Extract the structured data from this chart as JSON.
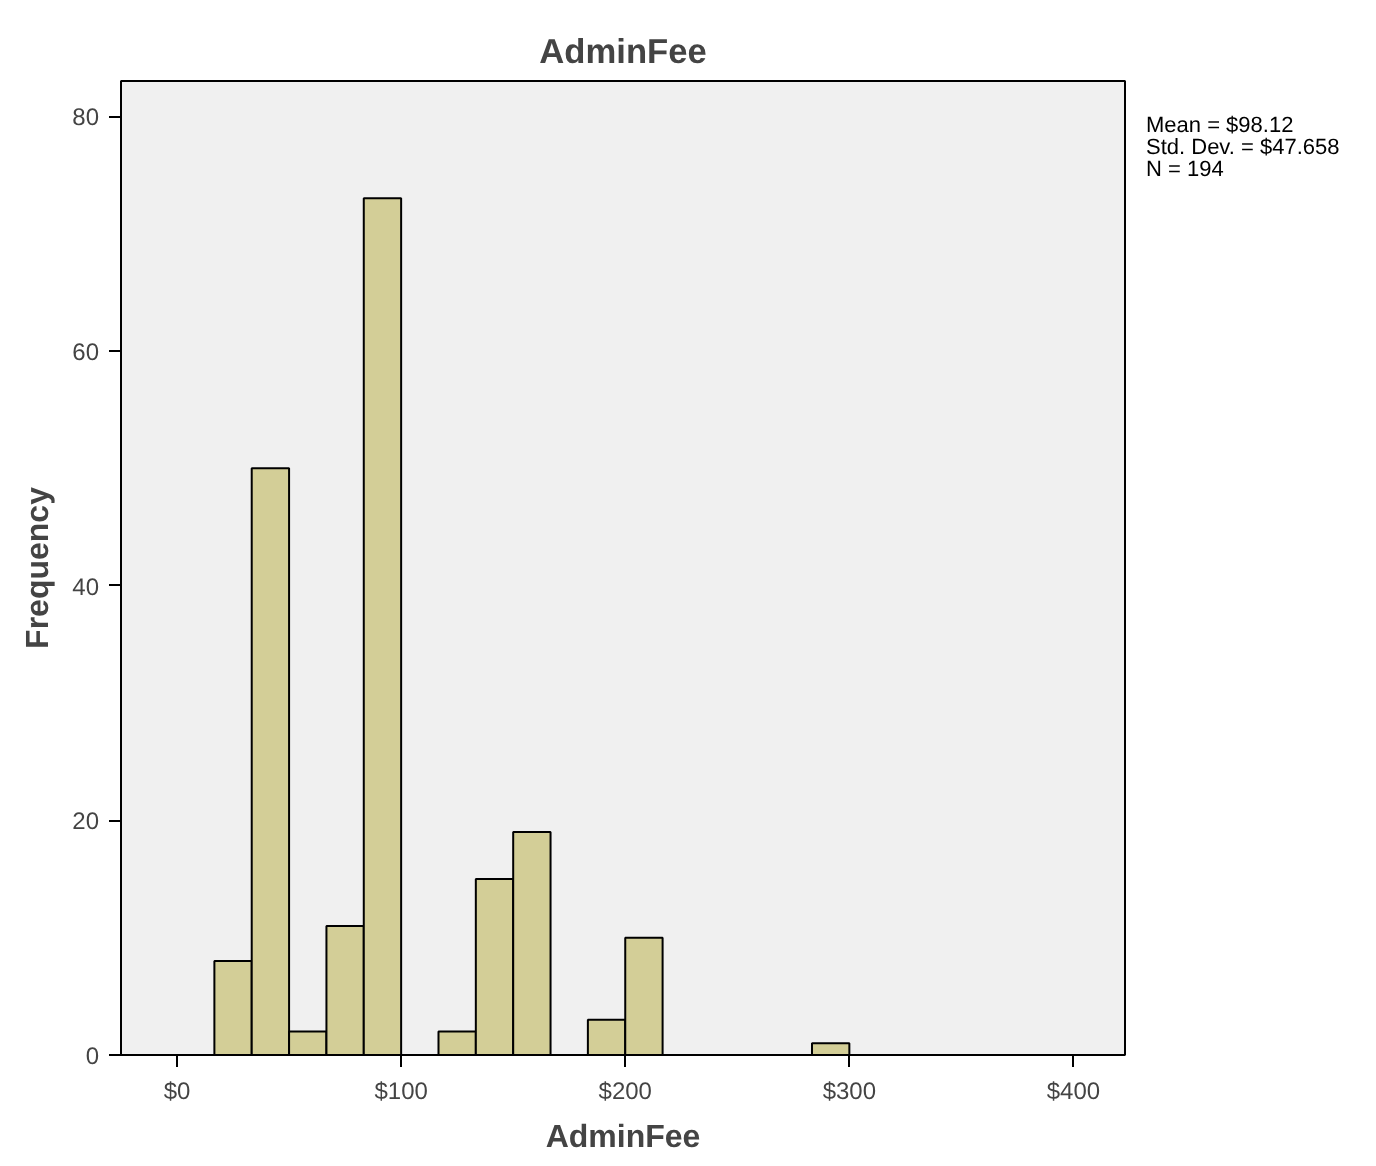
{
  "chart_data": {
    "type": "histogram",
    "title": "AdminFee",
    "xlabel": "AdminFee",
    "ylabel": "Frequency",
    "bins": [
      16.67,
      33.33,
      50,
      66.67,
      83.33,
      100,
      116.67,
      133.33,
      150,
      166.67,
      183.33,
      200,
      216.67,
      233.33,
      250,
      266.67,
      283.33,
      300
    ],
    "values": [
      8,
      50,
      2,
      11,
      73,
      0,
      2,
      15,
      19,
      0,
      3,
      10,
      0,
      0,
      0,
      0,
      1
    ],
    "color": "#d3ce97",
    "xlim": [
      -25,
      423
    ],
    "ylim": [
      0,
      83
    ],
    "xticks": [
      {
        "value": 0,
        "label": "$0"
      },
      {
        "value": 100,
        "label": "$100"
      },
      {
        "value": 200,
        "label": "$200"
      },
      {
        "value": 300,
        "label": "$300"
      },
      {
        "value": 400,
        "label": "$400"
      }
    ],
    "yticks": [
      0,
      20,
      40,
      60,
      80
    ],
    "grid": false,
    "annotations": [
      "Mean = $98.12",
      "Std. Dev. = $47.658",
      "N = 194"
    ]
  }
}
